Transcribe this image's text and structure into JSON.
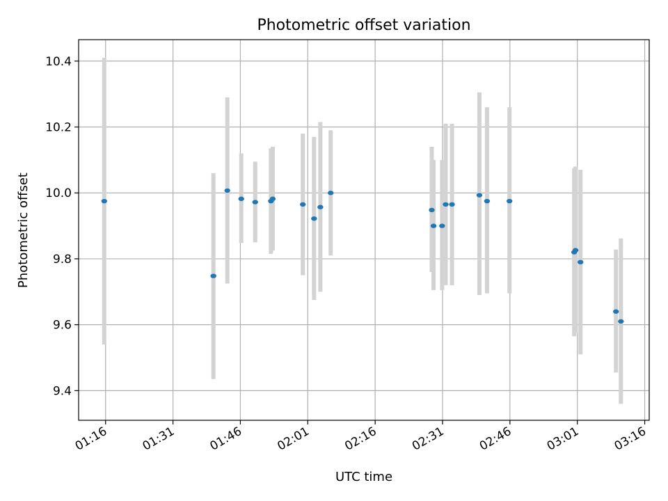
{
  "chart_data": {
    "type": "scatter",
    "title": "Photometric offset variation",
    "xlabel": "UTC time",
    "ylabel": "Photometric offset",
    "grid": true,
    "xlim": [
      "01:10",
      "03:17"
    ],
    "ylim": [
      9.31,
      10.465
    ],
    "x_ticks": [
      "01:16",
      "01:31",
      "01:46",
      "02:01",
      "02:16",
      "02:31",
      "02:46",
      "03:01",
      "03:16"
    ],
    "y_ticks": [
      "9.4",
      "9.6",
      "9.8",
      "10.0",
      "10.2",
      "10.4"
    ],
    "point_color": "#1f77b4",
    "errorbar_color": "#d3d3d3",
    "series": [
      {
        "points": [
          {
            "x": "01:15.7",
            "y": 9.975,
            "yerr": [
              9.54,
              10.41
            ]
          },
          {
            "x": "01:40.0",
            "y": 9.748,
            "yerr": [
              9.435,
              10.06
            ]
          },
          {
            "x": "01:43.1",
            "y": 10.007,
            "yerr": [
              9.725,
              10.29
            ]
          },
          {
            "x": "01:46.2",
            "y": 9.982,
            "yerr": [
              9.848,
              10.12
            ]
          },
          {
            "x": "01:49.3",
            "y": 9.972,
            "yerr": [
              9.85,
              10.095
            ]
          },
          {
            "x": "01:52.8",
            "y": 9.975,
            "yerr": [
              9.815,
              10.135
            ]
          },
          {
            "x": "01:53.2",
            "y": 9.982,
            "yerr": [
              9.825,
              10.14
            ]
          },
          {
            "x": "01:59.9",
            "y": 9.965,
            "yerr": [
              9.75,
              10.18
            ]
          },
          {
            "x": "02:02.4",
            "y": 9.922,
            "yerr": [
              9.675,
              10.17
            ]
          },
          {
            "x": "02:03.8",
            "y": 9.957,
            "yerr": [
              9.7,
              10.215
            ]
          },
          {
            "x": "02:06.1",
            "y": 10.0,
            "yerr": [
              9.81,
              10.19
            ]
          },
          {
            "x": "02:28.6",
            "y": 9.948,
            "yerr": [
              9.76,
              10.14
            ]
          },
          {
            "x": "02:29.0",
            "y": 9.9,
            "yerr": [
              9.705,
              10.1
            ]
          },
          {
            "x": "02:30.9",
            "y": 9.9,
            "yerr": [
              9.705,
              10.1
            ]
          },
          {
            "x": "02:31.7",
            "y": 9.965,
            "yerr": [
              9.72,
              10.21
            ]
          },
          {
            "x": "02:33.1",
            "y": 9.965,
            "yerr": [
              9.72,
              10.21
            ]
          },
          {
            "x": "02:39.2",
            "y": 9.993,
            "yerr": [
              9.69,
              10.305
            ]
          },
          {
            "x": "02:40.9",
            "y": 9.975,
            "yerr": [
              9.695,
              10.26
            ]
          },
          {
            "x": "02:45.9",
            "y": 9.975,
            "yerr": [
              9.695,
              10.26
            ]
          },
          {
            "x": "03:00.3",
            "y": 9.82,
            "yerr": [
              9.565,
              10.075
            ]
          },
          {
            "x": "03:00.6",
            "y": 9.826,
            "yerr": [
              9.575,
              10.08
            ]
          },
          {
            "x": "03:01.7",
            "y": 9.79,
            "yerr": [
              9.51,
              10.07
            ]
          },
          {
            "x": "03:09.6",
            "y": 9.64,
            "yerr": [
              9.455,
              9.828
            ]
          },
          {
            "x": "03:10.7",
            "y": 9.61,
            "yerr": [
              9.36,
              9.862
            ]
          }
        ]
      }
    ]
  }
}
